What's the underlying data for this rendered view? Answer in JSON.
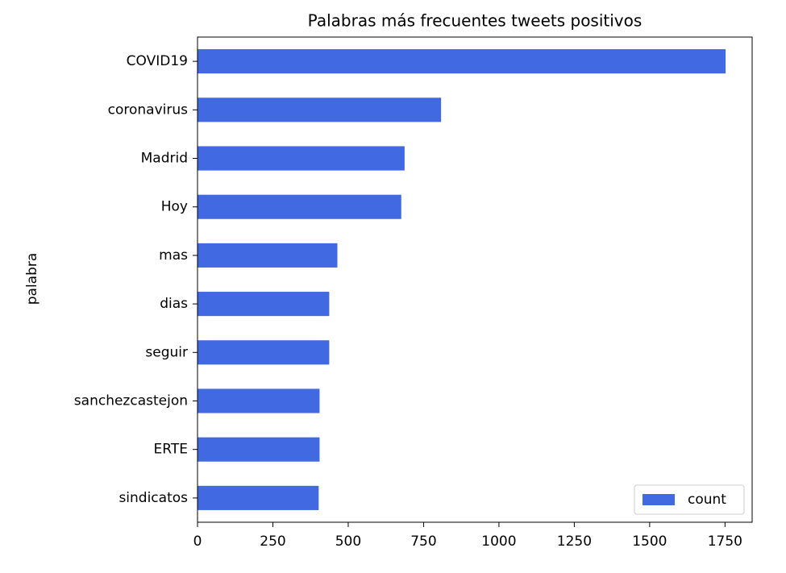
{
  "chart_data": {
    "type": "barh",
    "title": "Palabras más frecuentes tweets positivos",
    "y_label": "palabra",
    "categories": [
      "COVID19",
      "coronavirus",
      "Madrid",
      "Hoy",
      "mas",
      "dias",
      "seguir",
      "sanchezcastejon",
      "ERTE",
      "sindicatos"
    ],
    "series": [
      {
        "name": "count",
        "color": "#4169e1",
        "values": [
          1752,
          808,
          687,
          676,
          464,
          437,
          437,
          405,
          405,
          402
        ]
      }
    ],
    "xlim": [
      0,
      1840
    ],
    "xticks": [
      0,
      250,
      500,
      750,
      1000,
      1250,
      1500,
      1750
    ],
    "legend": "lower right"
  }
}
